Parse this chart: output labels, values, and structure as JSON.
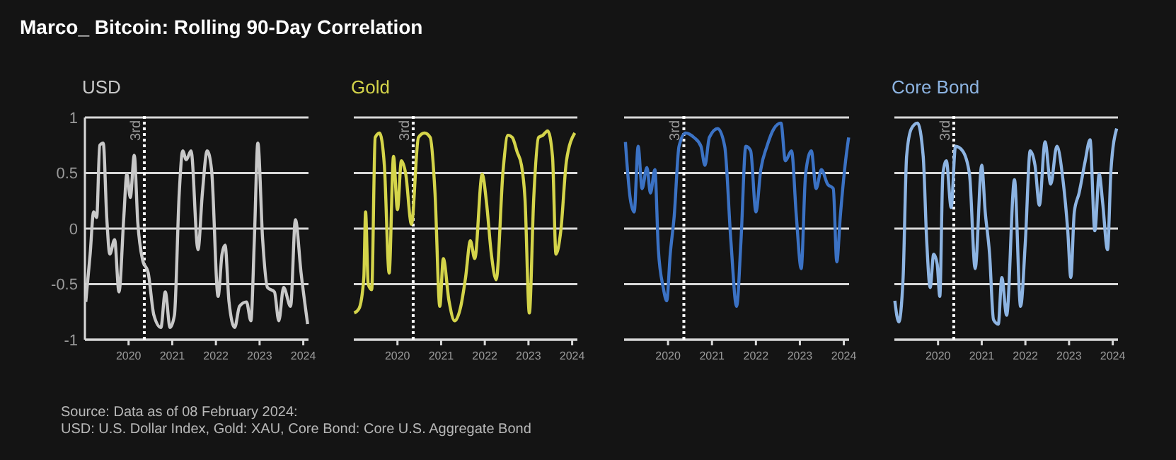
{
  "chart_data": [
    {
      "type": "line",
      "title": "Marco_ Bitcoin: Rolling 90-Day Correlation",
      "annotations": [
        "Source: Data as of 08 February 2024:",
        "USD: U.S. Dollar Index, Gold: XAU, Core Bond: Core U.S. Aggregate Bond"
      ],
      "xlim": [
        2019.0,
        2024.12
      ],
      "xticks": [
        2020,
        2021,
        2022,
        2023,
        2024
      ],
      "ylim": [
        -1,
        1
      ],
      "yticks": [
        -1,
        -0.5,
        0,
        0.5,
        1
      ],
      "grid": "y",
      "ref_lines": [
        {
          "axis": "x",
          "value": 2020.36,
          "label": "3rd",
          "line_style": "dotted",
          "color": "#ffffff"
        }
      ],
      "series": [
        {
          "name": "USD",
          "color": "#c8c8c8",
          "x": [
            2019.02,
            2019.12,
            2019.2,
            2019.27,
            2019.34,
            2019.42,
            2019.5,
            2019.57,
            2019.68,
            2019.78,
            2019.89,
            2019.96,
            2020.04,
            2020.13,
            2020.21,
            2020.32,
            2020.45,
            2020.58,
            2020.74,
            2020.84,
            2020.95,
            2021.05,
            2021.16,
            2021.24,
            2021.32,
            2021.43,
            2021.59,
            2021.69,
            2021.8,
            2021.9,
            2022.05,
            2022.14,
            2022.21,
            2022.3,
            2022.43,
            2022.54,
            2022.7,
            2022.8,
            2022.88,
            2022.96,
            2023.07,
            2023.18,
            2023.34,
            2023.44,
            2023.55,
            2023.71,
            2023.82,
            2023.95,
            2024.1
          ],
          "values": [
            -0.66,
            -0.23,
            0.15,
            0.1,
            0.75,
            0.77,
            0.1,
            -0.23,
            -0.1,
            -0.57,
            0.1,
            0.49,
            0.28,
            0.66,
            0.06,
            -0.28,
            -0.4,
            -0.78,
            -0.89,
            -0.57,
            -0.89,
            -0.78,
            0.32,
            0.7,
            0.62,
            0.7,
            -0.19,
            0.32,
            0.7,
            0.53,
            -0.61,
            -0.23,
            -0.15,
            -0.66,
            -0.89,
            -0.7,
            -0.66,
            -0.83,
            -0.1,
            0.77,
            -0.1,
            -0.53,
            -0.57,
            -0.83,
            -0.53,
            -0.7,
            0.08,
            -0.4,
            -0.86
          ]
        }
      ]
    },
    {
      "type": "line",
      "xlim": [
        2019.0,
        2024.12
      ],
      "xticks": [
        2020,
        2021,
        2022,
        2023,
        2024
      ],
      "ylim": [
        -1,
        1
      ],
      "yticks": [
        -1,
        -0.5,
        0,
        0.5,
        1
      ],
      "grid": "y",
      "tick_labels": "x",
      "ref_lines": [
        {
          "axis": "x",
          "value": 2020.36,
          "label": "3rd",
          "line_style": "dotted",
          "color": "#ffffff"
        }
      ],
      "series": [
        {
          "name": "Gold",
          "color": "#d4d44a",
          "x": [
            2019.01,
            2019.12,
            2019.23,
            2019.27,
            2019.33,
            2019.41,
            2019.49,
            2019.59,
            2019.7,
            2019.81,
            2019.91,
            2020.0,
            2020.09,
            2020.19,
            2020.32,
            2020.48,
            2020.62,
            2020.75,
            2020.86,
            2020.97,
            2021.05,
            2021.18,
            2021.31,
            2021.45,
            2021.56,
            2021.67,
            2021.77,
            2021.94,
            2022.04,
            2022.15,
            2022.26,
            2022.42,
            2022.53,
            2022.63,
            2022.74,
            2022.84,
            2022.92,
            2023.02,
            2023.12,
            2023.23,
            2023.33,
            2023.44,
            2023.55,
            2023.63,
            2023.74,
            2023.87,
            2024.06
          ],
          "values": [
            -0.76,
            -0.72,
            -0.44,
            0.15,
            -0.5,
            -0.55,
            0.82,
            0.86,
            0.57,
            -0.4,
            0.65,
            0.17,
            0.61,
            0.49,
            0.04,
            0.82,
            0.86,
            0.82,
            0.32,
            -0.7,
            -0.27,
            -0.65,
            -0.83,
            -0.7,
            -0.44,
            -0.11,
            -0.27,
            0.49,
            0.23,
            -0.23,
            -0.46,
            0.53,
            0.84,
            0.82,
            0.69,
            0.57,
            0.27,
            -0.76,
            0.27,
            0.82,
            0.84,
            0.88,
            0.65,
            -0.23,
            -0.02,
            0.61,
            0.86
          ]
        }
      ]
    },
    {
      "type": "line",
      "xlim": [
        2019.0,
        2024.12
      ],
      "xticks": [
        2020,
        2021,
        2022,
        2023,
        2024
      ],
      "ylim": [
        -1,
        1
      ],
      "yticks": [
        -1,
        -0.5,
        0,
        0.5,
        1
      ],
      "grid": "y",
      "tick_labels": "x",
      "ref_lines": [
        {
          "axis": "x",
          "value": 2020.36,
          "label": "3rd",
          "line_style": "dotted",
          "color": "#ffffff"
        }
      ],
      "series": [
        {
          "color": "#3b72c4",
          "x": [
            2019.03,
            2019.14,
            2019.23,
            2019.32,
            2019.41,
            2019.52,
            2019.6,
            2019.7,
            2019.78,
            2019.89,
            2019.97,
            2020.05,
            2020.14,
            2020.25,
            2020.4,
            2020.59,
            2020.75,
            2020.84,
            2020.94,
            2021.13,
            2021.29,
            2021.43,
            2021.56,
            2021.66,
            2021.77,
            2021.88,
            2022.0,
            2022.11,
            2022.25,
            2022.41,
            2022.57,
            2022.67,
            2022.81,
            2022.92,
            2023.03,
            2023.13,
            2023.26,
            2023.37,
            2023.49,
            2023.63,
            2023.76,
            2023.84,
            2023.92,
            2024.04,
            2024.11
          ],
          "values": [
            0.78,
            0.27,
            0.15,
            0.74,
            0.36,
            0.55,
            0.32,
            0.53,
            -0.19,
            -0.53,
            -0.65,
            -0.23,
            0.11,
            0.74,
            0.86,
            0.82,
            0.74,
            0.57,
            0.82,
            0.9,
            0.74,
            -0.11,
            -0.7,
            -0.11,
            0.74,
            0.7,
            0.15,
            0.53,
            0.74,
            0.9,
            0.95,
            0.61,
            0.7,
            0.11,
            -0.36,
            0.49,
            0.7,
            0.36,
            0.53,
            0.4,
            0.36,
            -0.3,
            0.11,
            0.61,
            0.82
          ]
        }
      ]
    },
    {
      "type": "line",
      "xlim": [
        2019.0,
        2024.12
      ],
      "xticks": [
        2020,
        2021,
        2022,
        2023,
        2024
      ],
      "ylim": [
        -1,
        1
      ],
      "yticks": [
        -1,
        -0.5,
        0,
        0.5,
        1
      ],
      "grid": "y",
      "tick_labels": "x",
      "ref_lines": [
        {
          "axis": "x",
          "value": 2020.36,
          "label": "3rd",
          "line_style": "dotted",
          "color": "#ffffff"
        }
      ],
      "series": [
        {
          "name": "Core Bond",
          "color": "#8db4e2",
          "x": [
            2019.01,
            2019.1,
            2019.2,
            2019.28,
            2019.39,
            2019.53,
            2019.66,
            2019.74,
            2019.82,
            2019.9,
            2019.98,
            2020.04,
            2020.11,
            2020.19,
            2020.3,
            2020.4,
            2020.56,
            2020.72,
            2020.85,
            2021.0,
            2021.08,
            2021.18,
            2021.27,
            2021.38,
            2021.46,
            2021.57,
            2021.75,
            2021.89,
            2022.0,
            2022.11,
            2022.22,
            2022.32,
            2022.45,
            2022.58,
            2022.72,
            2022.86,
            2022.97,
            2023.04,
            2023.12,
            2023.23,
            2023.37,
            2023.48,
            2023.59,
            2023.69,
            2023.77,
            2023.88,
            2023.96,
            2024.09
          ],
          "values": [
            -0.65,
            -0.84,
            -0.44,
            0.65,
            0.9,
            0.95,
            0.65,
            -0.11,
            -0.53,
            -0.23,
            -0.32,
            -0.61,
            0.49,
            0.61,
            0.19,
            0.74,
            0.7,
            0.49,
            -0.36,
            0.57,
            0.15,
            -0.23,
            -0.82,
            -0.86,
            -0.44,
            -0.78,
            0.44,
            -0.7,
            -0.11,
            0.7,
            0.57,
            0.21,
            0.78,
            0.4,
            0.74,
            0.44,
            -0.02,
            -0.44,
            0.15,
            0.32,
            0.61,
            0.8,
            -0.02,
            0.49,
            0.23,
            -0.19,
            0.53,
            0.9
          ]
        }
      ]
    }
  ]
}
